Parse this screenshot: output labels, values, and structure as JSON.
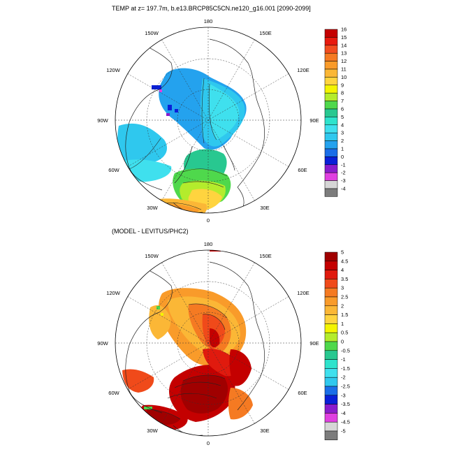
{
  "top_panel": {
    "title": "TEMP at z= 197.7m, b.e13.BRCP85C5CN.ne120_g16.001 [2090-2099]",
    "lon_labels": {
      "n180": "180",
      "w150": "150W",
      "e150": "150E",
      "w120": "120W",
      "e120": "120E",
      "w90": "90W",
      "e90": "90E",
      "w60": "60W",
      "e60": "60E",
      "w30": "30W",
      "e30": "30E",
      "s0": "0"
    },
    "colorbar": {
      "labels": [
        "16",
        "15",
        "14",
        "13",
        "12",
        "11",
        "10",
        "9",
        "8",
        "7",
        "6",
        "5",
        "4",
        "3",
        "2",
        "1",
        "0",
        "-1",
        "-2",
        "-3",
        "-4"
      ],
      "colors": [
        "#c40000",
        "#e81a0e",
        "#f24d1f",
        "#f57a22",
        "#f99b2a",
        "#fbb736",
        "#ffd43f",
        "#f4f400",
        "#b4ec2c",
        "#4fd84c",
        "#28c890",
        "#2ee3cc",
        "#3fe0ee",
        "#2fc8ee",
        "#24a2ee",
        "#1a6ee8",
        "#0a20d8",
        "#8a1ccc",
        "#e040e0",
        "#d6d6d6",
        "#7c7c7c"
      ]
    }
  },
  "bottom_panel": {
    "title": "(MODEL - LEVITUS/PHC2)",
    "lon_labels": {
      "n180": "180",
      "w150": "150W",
      "e150": "150E",
      "w120": "120W",
      "e120": "120E",
      "w90": "90W",
      "e90": "90E",
      "w60": "60W",
      "e60": "60E",
      "w30": "30W",
      "e30": "30E",
      "s0": "0"
    },
    "colorbar": {
      "labels": [
        "5",
        "4.5",
        "4",
        "3.5",
        "3",
        "2.5",
        "2",
        "1.5",
        "1",
        "0.5",
        "0",
        "-0.5",
        "-1",
        "-1.5",
        "-2",
        "-2.5",
        "-3",
        "-3.5",
        "-4",
        "-4.5",
        "-5"
      ],
      "colors": [
        "#a00000",
        "#c40000",
        "#e01a0e",
        "#f04a1a",
        "#f57a22",
        "#f99b2a",
        "#fbb736",
        "#ffd43f",
        "#f4f400",
        "#b4ec2c",
        "#4fd84c",
        "#28c890",
        "#2ee3cc",
        "#3fe0ee",
        "#2fc8ee",
        "#1a6ee8",
        "#0a20d8",
        "#8a1ccc",
        "#e040e0",
        "#d6d6d6",
        "#7c7c7c"
      ]
    }
  }
}
